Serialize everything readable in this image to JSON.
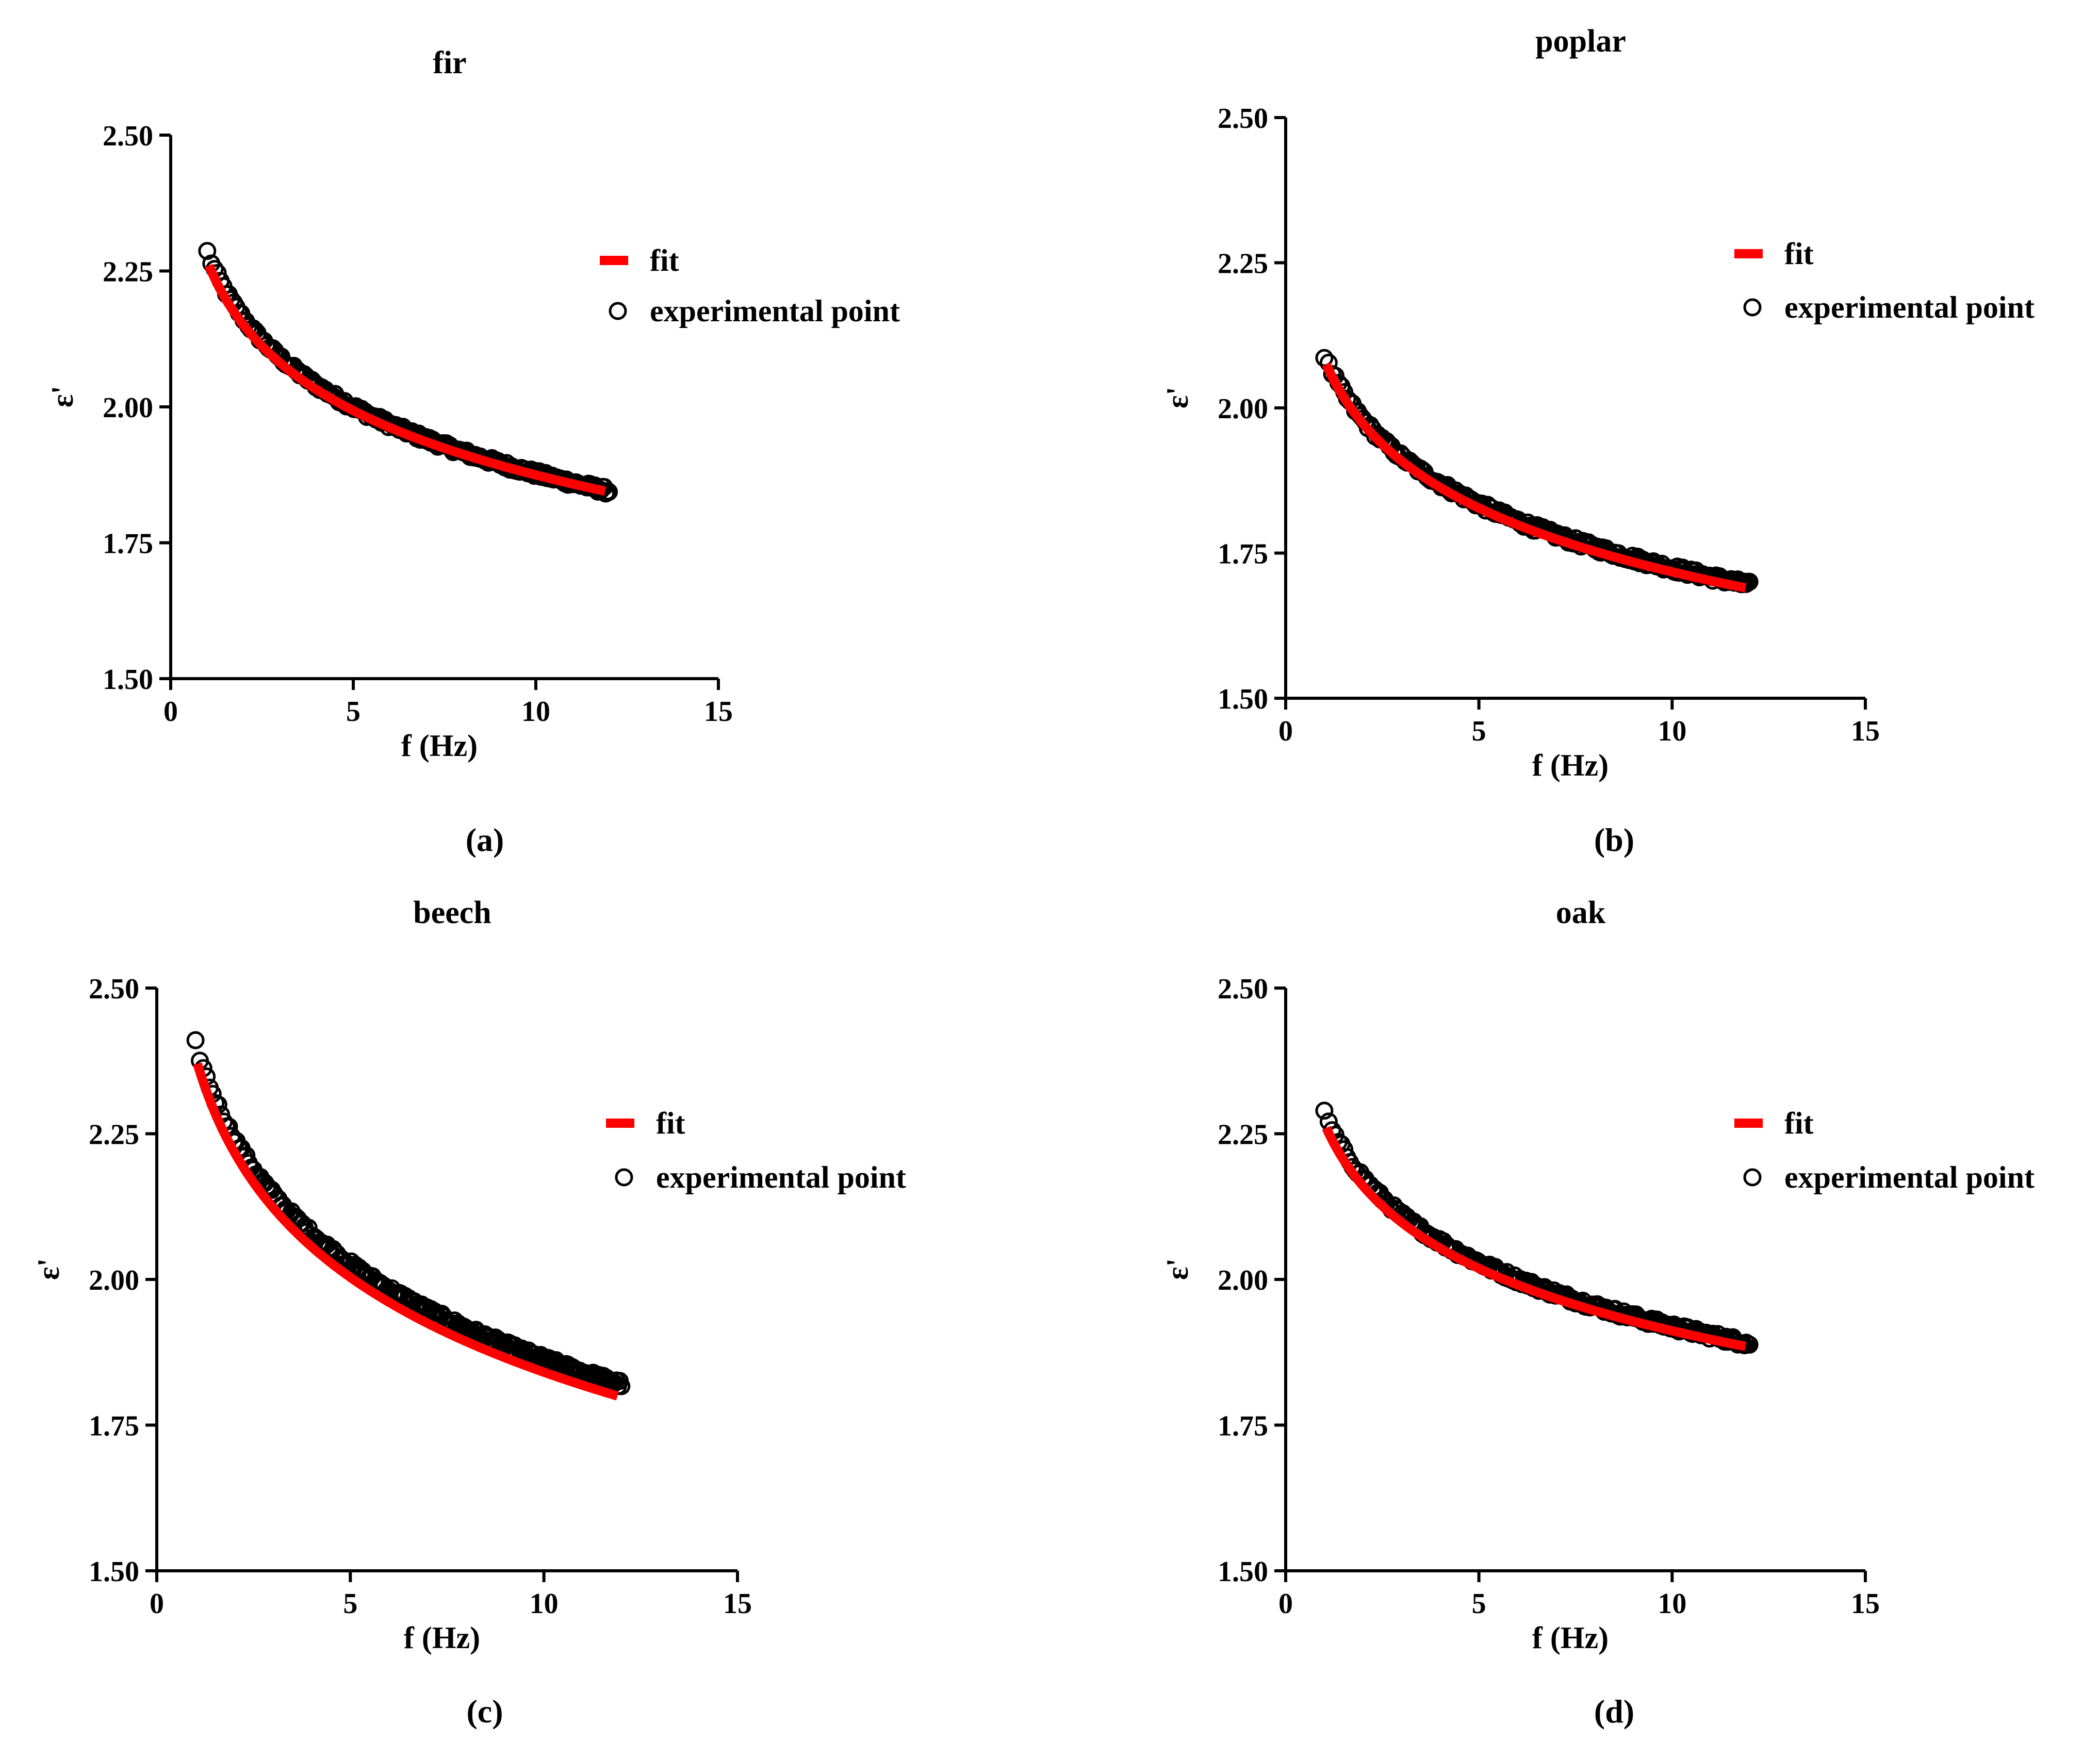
{
  "figure": {
    "panel_labels": [
      "(a)",
      "(b)",
      "(c)",
      "(d)"
    ],
    "colors": {
      "fit": "#ff0000",
      "points": "#000000",
      "axes": "#000000"
    }
  },
  "chart_data": [
    {
      "type": "scatter",
      "title": "fir",
      "panel_label": "(a)",
      "xlabel": "f (Hz)",
      "ylabel": "ε'",
      "xlim": [
        0,
        15
      ],
      "ylim": [
        1.5,
        2.5
      ],
      "xticks": [
        0,
        5,
        10,
        15
      ],
      "xtick_labels": [
        "0",
        "5",
        "10",
        "15"
      ],
      "yticks": [
        1.5,
        1.75,
        2.0,
        2.25,
        2.5
      ],
      "ytick_labels": [
        "1.50",
        "1.75",
        "2.00",
        "2.25",
        "2.50"
      ],
      "legend": {
        "placement": "top-right",
        "entries": [
          "fit",
          "experimental point"
        ]
      },
      "series": [
        {
          "name": "fit",
          "kind": "line",
          "x_range": [
            1.05,
            11.9
          ],
          "eps_start": 2.26,
          "eps_end": 1.845
        },
        {
          "name": "experimental point",
          "kind": "scatter",
          "x_range": [
            1.0,
            12.0
          ],
          "eps_start": 2.285,
          "eps_end": 1.845
        }
      ]
    },
    {
      "type": "scatter",
      "title": "poplar",
      "panel_label": "(b)",
      "xlabel": "f (Hz)",
      "ylabel": "ε'",
      "xlim": [
        0,
        15
      ],
      "ylim": [
        1.5,
        2.5
      ],
      "xticks": [
        0,
        5,
        10,
        15
      ],
      "xtick_labels": [
        "0",
        "5",
        "10",
        "15"
      ],
      "yticks": [
        1.5,
        1.75,
        2.0,
        2.25,
        2.5
      ],
      "ytick_labels": [
        "1.50",
        "1.75",
        "2.00",
        "2.25",
        "2.50"
      ],
      "legend": {
        "placement": "top-right",
        "entries": [
          "fit",
          "experimental point"
        ]
      },
      "series": [
        {
          "name": "fit",
          "kind": "line",
          "x_range": [
            1.05,
            11.9
          ],
          "eps_start": 2.075,
          "eps_end": 1.69
        },
        {
          "name": "experimental point",
          "kind": "scatter",
          "x_range": [
            1.0,
            12.0
          ],
          "eps_start": 2.09,
          "eps_end": 1.695
        }
      ]
    },
    {
      "type": "scatter",
      "title": "beech",
      "panel_label": "(c)",
      "xlabel": "f (Hz)",
      "ylabel": "ε'",
      "xlim": [
        0,
        15
      ],
      "ylim": [
        1.5,
        2.5
      ],
      "xticks": [
        0,
        5,
        10,
        15
      ],
      "xtick_labels": [
        "0",
        "5",
        "10",
        "15"
      ],
      "yticks": [
        1.5,
        1.75,
        2.0,
        2.25,
        2.5
      ],
      "ytick_labels": [
        "1.50",
        "1.75",
        "2.00",
        "2.25",
        "2.50"
      ],
      "legend": {
        "placement": "top-right",
        "entries": [
          "fit",
          "experimental point"
        ]
      },
      "series": [
        {
          "name": "fit",
          "kind": "line",
          "x_range": [
            1.05,
            11.9
          ],
          "eps_start": 2.37,
          "eps_end": 1.8
        },
        {
          "name": "experimental point",
          "kind": "scatter",
          "x_range": [
            1.0,
            12.0
          ],
          "eps_start": 2.405,
          "eps_end": 1.82
        }
      ]
    },
    {
      "type": "scatter",
      "title": "oak",
      "panel_label": "(d)",
      "xlabel": "f (Hz)",
      "ylabel": "ε'",
      "xlim": [
        0,
        15
      ],
      "ylim": [
        1.5,
        2.5
      ],
      "xticks": [
        0,
        5,
        10,
        15
      ],
      "xtick_labels": [
        "0",
        "5",
        "10",
        "15"
      ],
      "yticks": [
        1.5,
        1.75,
        2.0,
        2.25,
        2.5
      ],
      "ytick_labels": [
        "1.50",
        "1.75",
        "2.00",
        "2.25",
        "2.50"
      ],
      "legend": {
        "placement": "top-right",
        "entries": [
          "fit",
          "experimental point"
        ]
      },
      "series": [
        {
          "name": "fit",
          "kind": "line",
          "x_range": [
            1.05,
            11.9
          ],
          "eps_start": 2.26,
          "eps_end": 1.885
        },
        {
          "name": "experimental point",
          "kind": "scatter",
          "x_range": [
            1.0,
            12.0
          ],
          "eps_start": 2.285,
          "eps_end": 1.89
        }
      ]
    }
  ]
}
